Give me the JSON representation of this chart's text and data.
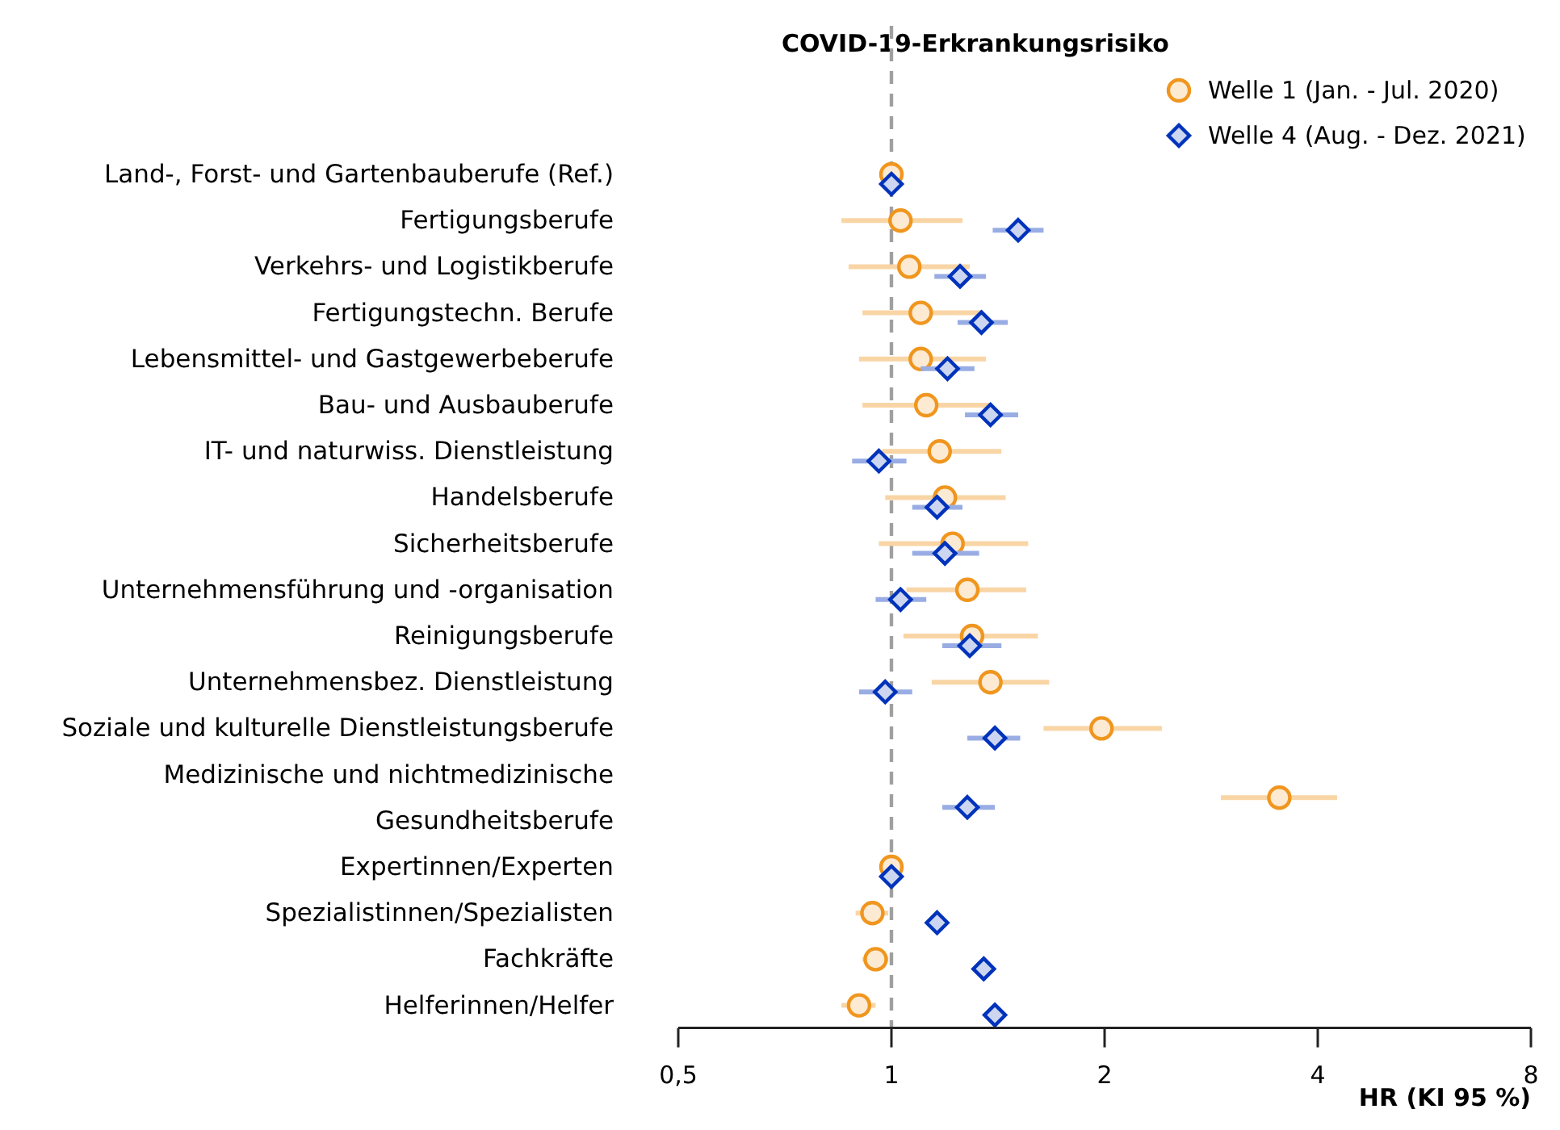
{
  "chart_data": {
    "type": "scatter",
    "title": "COVID-19-Erkrankungsrisiko",
    "xlabel": "HR (KI 95 %)",
    "orientation": "horizontal",
    "log": "x",
    "grid": false,
    "legend": "top right",
    "categories": [
      "Land-, Forst- und Gartenbauberufe (Ref.)",
      "Fertigungsberufe",
      "Verkehrs- und Logistikberufe",
      "Fertigungstechn. Berufe",
      "Lebensmittel- und Gastgewerbeberufe",
      "Bau- und Ausbauberufe",
      "IT- und naturwiss. Dienstleistung",
      "Handelsberufe",
      "Sicherheitsberufe",
      "Unternehmensführung und -organisation",
      "Reinigungsberufe",
      "Unternehmensbez. Dienstleistung",
      "Soziale und kulturelle Dienstleistungsberufe",
      "Medizinische und nichtmedizinische Gesundheitsberufe",
      "Expertinnen/Experten",
      "Spezialistinnen/Spezialisten",
      "Fachkräfte",
      "Helferinnen/Helfer"
    ],
    "xlim": [
      0.5,
      8
    ],
    "xticks": [
      {
        "value": 0.5,
        "label": "0,5"
      },
      1,
      2,
      4,
      8
    ],
    "ref_lines": [
      {
        "axis": "x",
        "value": 1,
        "color": "#a0a0a0",
        "line_style": "dashed"
      }
    ],
    "series": [
      {
        "name": "Welle 1 (Jan. - Jul. 2020)",
        "color": "#f0961e",
        "marker": "circle",
        "values": [
          1.0,
          1.03,
          1.06,
          1.1,
          1.1,
          1.12,
          1.17,
          1.19,
          1.22,
          1.28,
          1.3,
          1.38,
          1.98,
          3.53,
          1.0,
          0.94,
          0.95,
          0.9
        ],
        "errors": [
          null,
          [
            0.85,
            1.26
          ],
          [
            0.87,
            1.29
          ],
          [
            0.91,
            1.34
          ],
          [
            0.9,
            1.36
          ],
          [
            0.91,
            1.38
          ],
          [
            0.97,
            1.43
          ],
          [
            0.98,
            1.45
          ],
          [
            0.96,
            1.56
          ],
          [
            1.05,
            1.55
          ],
          [
            1.04,
            1.61
          ],
          [
            1.14,
            1.67
          ],
          [
            1.64,
            2.41
          ],
          [
            2.92,
            4.26
          ],
          null,
          [
            0.89,
            0.99
          ],
          [
            0.91,
            0.99
          ],
          [
            0.85,
            0.95
          ]
        ]
      },
      {
        "name": "Welle 4 (Aug. - Dez. 2021)",
        "color": "#0033bb",
        "marker": "diamond",
        "values": [
          1.0,
          1.51,
          1.25,
          1.34,
          1.2,
          1.38,
          0.96,
          1.16,
          1.19,
          1.03,
          1.29,
          0.98,
          1.4,
          1.28,
          1.0,
          1.16,
          1.35,
          1.4
        ],
        "errors": [
          null,
          [
            1.39,
            1.64
          ],
          [
            1.15,
            1.36
          ],
          [
            1.24,
            1.46
          ],
          [
            1.1,
            1.31
          ],
          [
            1.27,
            1.51
          ],
          [
            0.88,
            1.05
          ],
          [
            1.07,
            1.26
          ],
          [
            1.07,
            1.33
          ],
          [
            0.95,
            1.12
          ],
          [
            1.18,
            1.43
          ],
          [
            0.9,
            1.07
          ],
          [
            1.28,
            1.52
          ],
          [
            1.18,
            1.4
          ],
          null,
          null,
          null,
          null
        ]
      }
    ]
  }
}
